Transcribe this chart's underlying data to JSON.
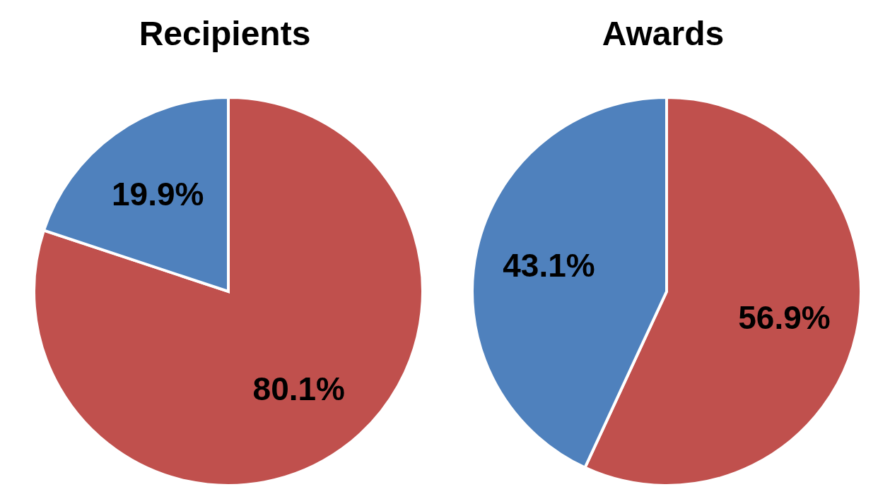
{
  "chart_data": [
    {
      "type": "pie",
      "title": "Recipients",
      "categories": [
        null,
        null
      ],
      "values": [
        80.1,
        19.9
      ],
      "colors": [
        "#c0504d",
        "#4f81bd"
      ],
      "value_labels": [
        "80.1%",
        "19.9%"
      ]
    },
    {
      "type": "pie",
      "title": "Awards",
      "categories": [
        null,
        null
      ],
      "values": [
        56.9,
        43.1
      ],
      "colors": [
        "#c0504d",
        "#4f81bd"
      ],
      "value_labels": [
        "56.9%",
        "43.1%"
      ]
    }
  ]
}
